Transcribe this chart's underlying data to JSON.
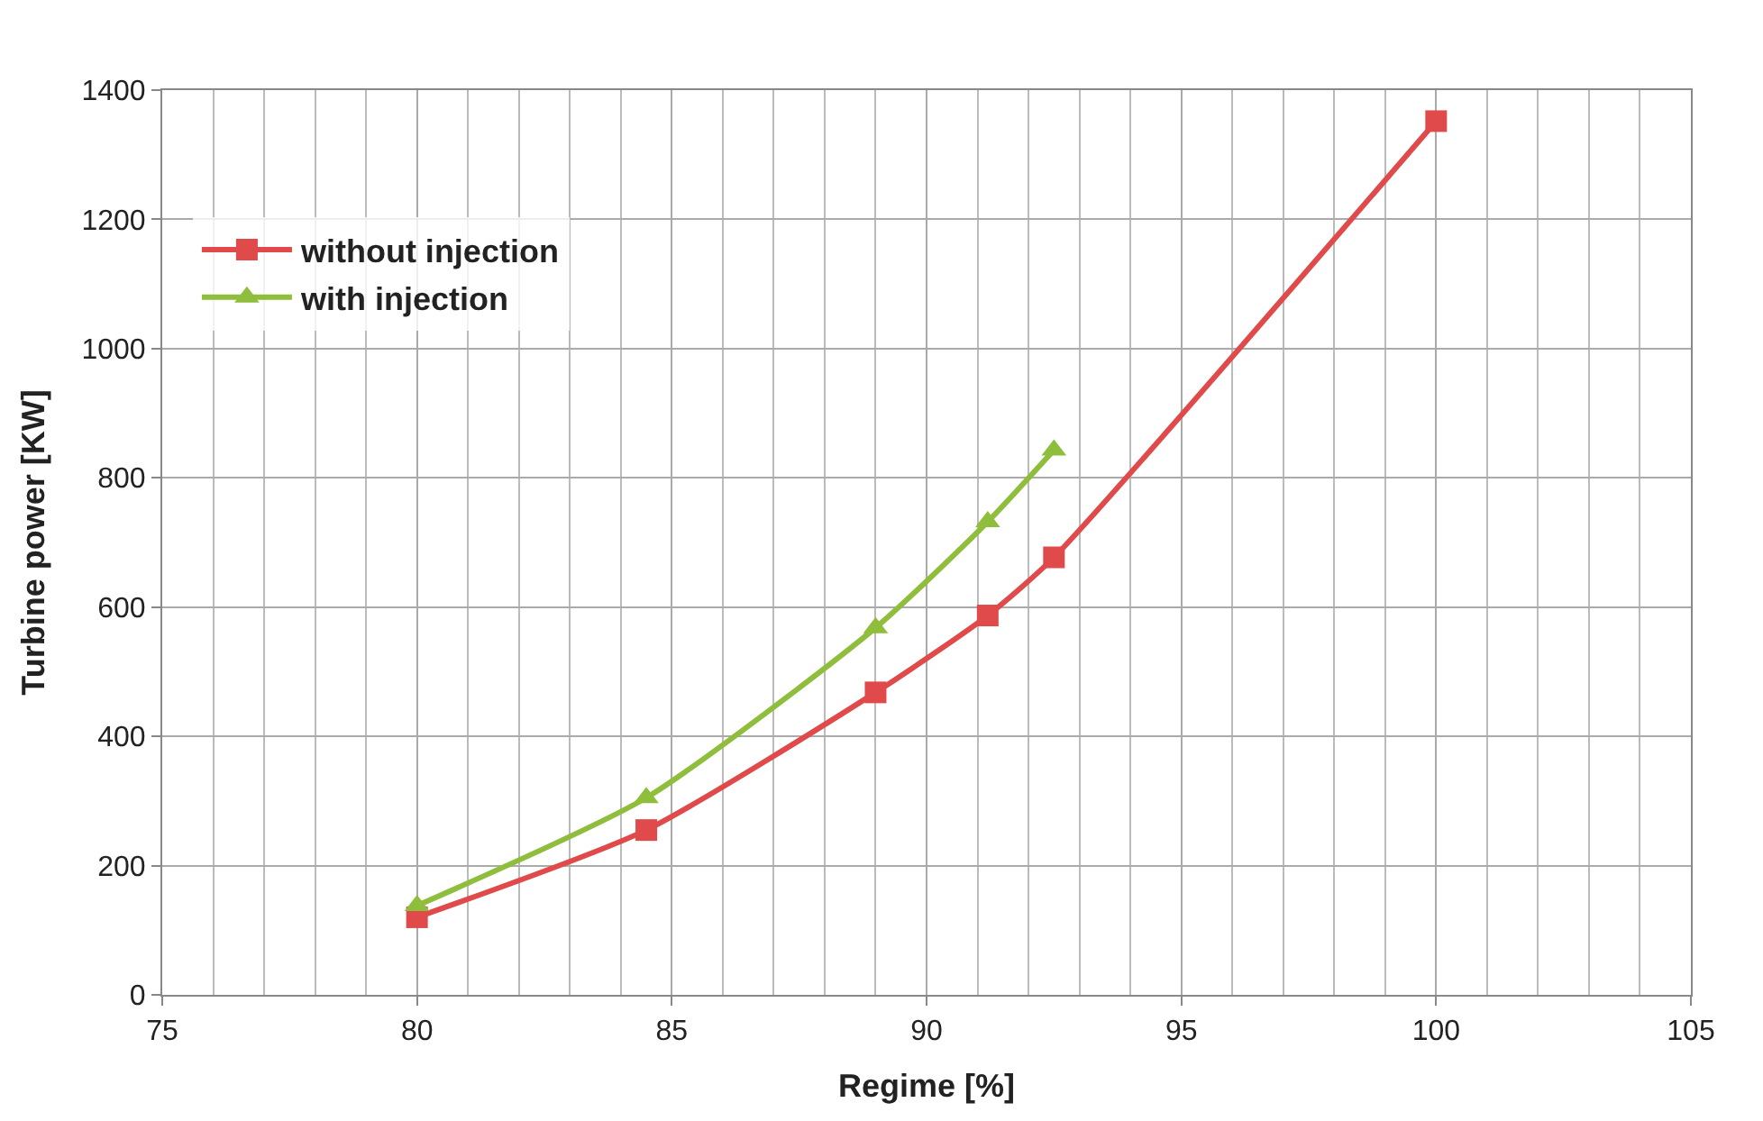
{
  "chart_data": {
    "type": "line",
    "xlabel": "Regime [%]",
    "ylabel": "Turbine power [KW]",
    "x": [
      80,
      84.5,
      89,
      91.2,
      92.5,
      100
    ],
    "series": [
      {
        "name": "without injection",
        "color": "#e04a4a",
        "marker": "square",
        "values": [
          120,
          255,
          468,
          587,
          677,
          1352
        ]
      },
      {
        "name": "with injection",
        "color": "#8fbe3c",
        "marker": "triangle",
        "x": [
          80,
          84.5,
          89,
          91.2,
          92.5
        ],
        "values": [
          138,
          305,
          568,
          732,
          843
        ]
      }
    ],
    "xlim": [
      75,
      105
    ],
    "xticks": [
      75,
      80,
      85,
      90,
      95,
      100,
      105
    ],
    "ylim": [
      0,
      1400
    ],
    "yticks": [
      0,
      200,
      400,
      600,
      800,
      1000,
      1200,
      1400
    ],
    "grid": true,
    "legend": "top left",
    "line_style": "solid"
  }
}
